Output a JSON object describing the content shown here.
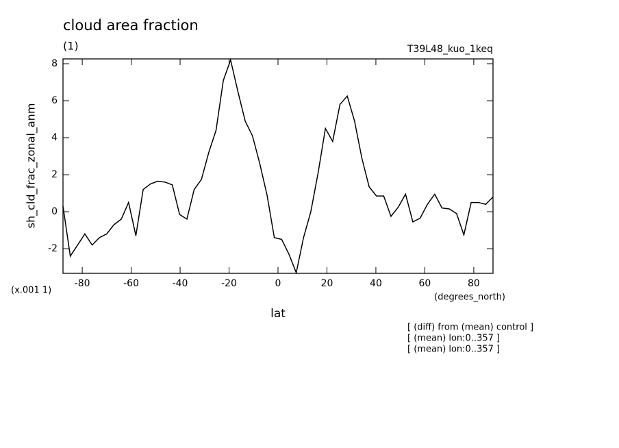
{
  "chart_data": {
    "type": "line",
    "title": "cloud area fraction",
    "subtitle": "(1)",
    "run_label": "T39L48_kuo_1keq",
    "y_label": "sh_cld_frac_zonal_anm",
    "y_scale_label": "(x.001 1)",
    "x_units": "(degrees_north)",
    "x_label": "lat",
    "annotations": [
      "[ (diff) from (mean) control ]",
      "[ (mean) lon:0..357 ]",
      "[ (mean) lon:0..357 ]"
    ],
    "x": [
      -87.86,
      -84.88,
      -81.9,
      -78.93,
      -75.95,
      -72.97,
      -69.99,
      -67.01,
      -64.04,
      -61.06,
      -58.08,
      -55.1,
      -52.12,
      -49.15,
      -46.17,
      -43.19,
      -40.21,
      -37.23,
      -34.26,
      -31.28,
      -28.3,
      -25.32,
      -22.34,
      -19.37,
      -16.39,
      -13.41,
      -10.43,
      -7.45,
      -4.48,
      -1.5,
      1.5,
      4.48,
      7.45,
      10.43,
      13.41,
      16.39,
      19.37,
      22.34,
      25.32,
      28.3,
      31.28,
      34.26,
      37.23,
      40.21,
      43.19,
      46.17,
      49.15,
      52.12,
      55.1,
      58.08,
      61.06,
      64.04,
      67.01,
      69.99,
      72.97,
      75.95,
      78.93,
      81.9,
      84.88,
      87.86
    ],
    "series": [
      {
        "color": "#000000",
        "values": [
          0.3,
          -2.4,
          -1.8,
          -1.2,
          -1.8,
          -1.4,
          -1.2,
          -0.7,
          -0.4,
          0.5,
          -1.3,
          1.2,
          1.5,
          1.65,
          1.6,
          1.45,
          -0.15,
          -0.4,
          1.2,
          1.75,
          3.2,
          4.4,
          7.1,
          8.2,
          6.5,
          4.9,
          4.1,
          2.6,
          0.9,
          -1.4,
          -1.5,
          -2.3,
          -3.3,
          -1.4,
          0.0,
          2.1,
          4.5,
          3.8,
          5.8,
          6.25,
          4.9,
          2.9,
          1.35,
          0.85,
          0.85,
          -0.25,
          0.25,
          0.95,
          -0.55,
          -0.35,
          0.4,
          0.95,
          0.2,
          0.15,
          -0.1,
          -1.25,
          0.5,
          0.5,
          0.4,
          0.8
        ]
      }
    ],
    "xlim": [
      -87.86,
      87.86
    ],
    "ylim": [
      -3.33,
      8.26
    ],
    "xticks": [
      -80,
      -60,
      -40,
      -20,
      0,
      20,
      40,
      60,
      80
    ],
    "yticks": [
      -2,
      0,
      2,
      4,
      6,
      8
    ]
  }
}
